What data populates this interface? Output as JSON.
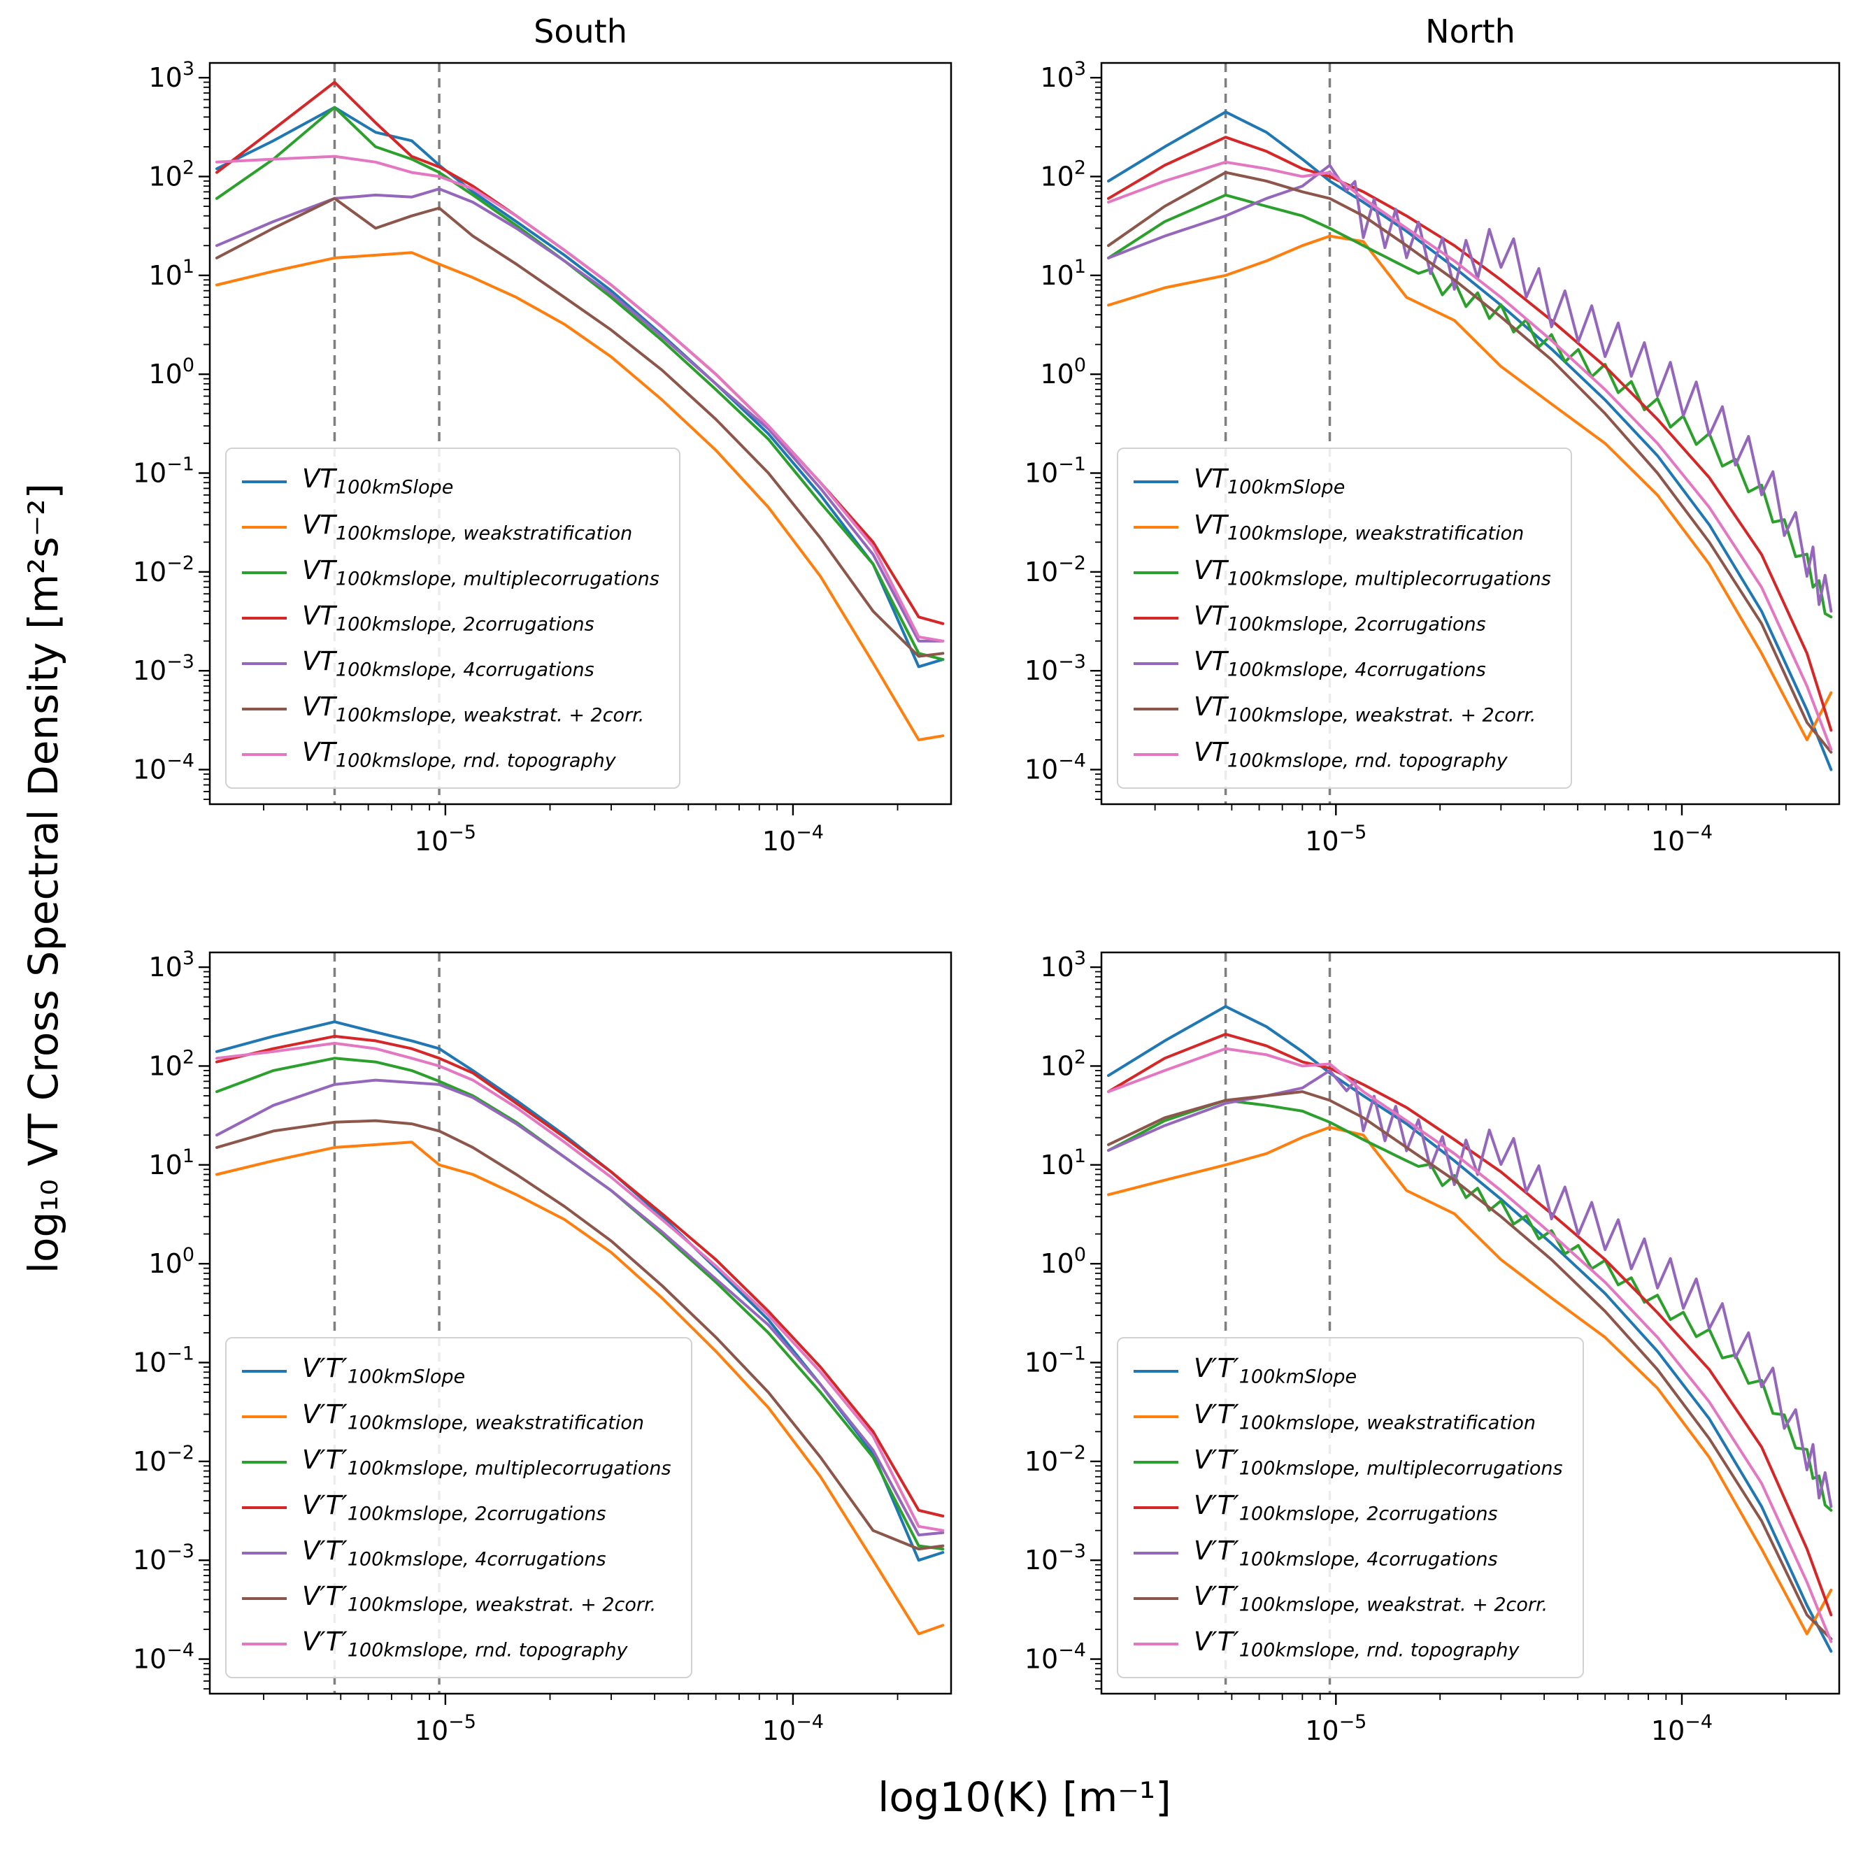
{
  "figure": {
    "column_titles": [
      "South",
      "North"
    ],
    "xlabel": "log10(K) [m⁻¹]",
    "ylabel": "log₁₀ VT Cross Spectral Density [m²s⁻²]"
  },
  "chart_data": {
    "type": "line",
    "x_scale": "log",
    "y_scale": "log",
    "xlim": [
      2.1e-06,
      0.000285
    ],
    "ylim": [
      4.47e-05,
      1410.0
    ],
    "xticks_labeled": [
      1e-05,
      0.0001
    ],
    "xtick_labels": [
      "10⁻⁵",
      "10⁻⁴"
    ],
    "ytick_exponents": [
      3,
      2,
      1,
      0,
      -1,
      -2,
      -3,
      -4
    ],
    "ytick_labels": [
      "10³",
      "10²",
      "10¹",
      "10⁰",
      "10⁻¹",
      "10⁻²",
      "10⁻³",
      "10⁻⁴"
    ],
    "vlines": [
      4.8e-06,
      9.6e-06
    ],
    "grid": false,
    "legend_position": "lower left",
    "x": [
      2.2e-06,
      3.2e-06,
      4.8e-06,
      6.3e-06,
      8e-06,
      9.6e-06,
      1.2e-05,
      1.6e-05,
      2.2e-05,
      3e-05,
      4.2e-05,
      6e-05,
      8.5e-05,
      0.00012,
      0.00017,
      0.00023,
      0.00027
    ],
    "panels": [
      {
        "id": "south-vt",
        "title": "South",
        "label_main": "VT",
        "series": [
          {
            "sub": "100kmSlope",
            "color": "#1f77b4",
            "y": [
              120,
              230,
              500,
              280,
              230,
              130,
              70,
              35,
              16,
              7,
              2.5,
              0.8,
              0.25,
              0.06,
              0.012,
              0.0011,
              0.0013
            ]
          },
          {
            "sub": "100kmslope, weakstratification",
            "color": "#ff7f0e",
            "y": [
              8,
              11,
              15,
              16,
              17,
              13,
              9.5,
              6,
              3.2,
              1.5,
              0.55,
              0.17,
              0.045,
              0.009,
              0.0012,
              0.0002,
              0.00022
            ]
          },
          {
            "sub": "100kmslope, multiplecorrugations",
            "color": "#2ca02c",
            "y": [
              60,
              150,
              500,
              200,
              150,
              110,
              65,
              32,
              14,
              6,
              2.2,
              0.7,
              0.22,
              0.05,
              0.012,
              0.0015,
              0.0013
            ]
          },
          {
            "sub": "100kmslope, 2corrugations",
            "color": "#d62728",
            "y": [
              110,
              300,
              900,
              350,
              160,
              125,
              80,
              40,
              18,
              8,
              3,
              1.0,
              0.3,
              0.08,
              0.02,
              0.0035,
              0.003
            ]
          },
          {
            "sub": "100kmslope, 4corrugations",
            "color": "#9467bd",
            "y": [
              20,
              35,
              60,
              65,
              62,
              75,
              55,
              30,
              14,
              6.5,
              2.4,
              0.8,
              0.28,
              0.07,
              0.015,
              0.002,
              0.002
            ]
          },
          {
            "sub": "100kmslope, weakstrat. + 2corr.",
            "color": "#8c564b",
            "y": [
              15,
              30,
              60,
              30,
              40,
              48,
              25,
              13,
              6,
              2.8,
              1.1,
              0.35,
              0.1,
              0.022,
              0.004,
              0.0014,
              0.0015
            ]
          },
          {
            "sub": "100kmslope, rnd. topography",
            "color": "#e377c2",
            "y": [
              140,
              150,
              160,
              140,
              110,
              100,
              75,
              40,
              18,
              8,
              3,
              1.0,
              0.3,
              0.08,
              0.018,
              0.0022,
              0.002
            ]
          }
        ]
      },
      {
        "id": "north-vt",
        "title": "North",
        "label_main": "VT",
        "series": [
          {
            "sub": "100kmSlope",
            "color": "#1f77b4",
            "y": [
              90,
              200,
              450,
              280,
              150,
              90,
              55,
              28,
              12,
              5,
              1.8,
              0.55,
              0.15,
              0.03,
              0.004,
              0.0004,
              0.0001
            ]
          },
          {
            "sub": "100kmslope, weakstratification",
            "color": "#ff7f0e",
            "y": [
              5,
              7.5,
              10,
              14,
              20,
              25,
              22,
              6,
              3.5,
              1.2,
              0.5,
              0.2,
              0.06,
              0.012,
              0.0015,
              0.0002,
              0.0006
            ]
          },
          {
            "sub": "100kmslope, multiplecorrugations",
            "color": "#2ca02c",
            "y": [
              15,
              35,
              65,
              50,
              40,
              30,
              20,
              12,
              7,
              4,
              2,
              1.0,
              0.45,
              0.2,
              0.06,
              0.012,
              0.0035
            ],
            "spike_amp": 0.1,
            "spike_from": 1.8e-05
          },
          {
            "sub": "100kmslope, 2corrugations",
            "color": "#d62728",
            "y": [
              60,
              130,
              250,
              180,
              120,
              100,
              70,
              40,
              20,
              9,
              3.5,
              1.2,
              0.35,
              0.09,
              0.015,
              0.0015,
              0.00025
            ]
          },
          {
            "sub": "100kmslope, 4corrugations",
            "color": "#9467bd",
            "y": [
              15,
              25,
              40,
              60,
              80,
              130,
              40,
              25,
              12,
              20,
              5,
              2.5,
              1.0,
              0.4,
              0.1,
              0.015,
              0.004
            ],
            "spike_amp": 0.22,
            "spike_from": 1.1e-05
          },
          {
            "sub": "100kmslope, weakstrat. + 2corr.",
            "color": "#8c564b",
            "y": [
              20,
              50,
              110,
              90,
              70,
              60,
              40,
              20,
              9,
              3.8,
              1.4,
              0.4,
              0.1,
              0.02,
              0.003,
              0.0003,
              0.00015
            ]
          },
          {
            "sub": "100kmslope, rnd. topography",
            "color": "#e377c2",
            "y": [
              55,
              90,
              140,
              120,
              100,
              110,
              60,
              30,
              14,
              6,
              2.2,
              0.7,
              0.2,
              0.045,
              0.007,
              0.0007,
              0.00016
            ]
          }
        ]
      },
      {
        "id": "south-vpt",
        "title": "",
        "label_main": "V′T′",
        "series": [
          {
            "sub": "100kmSlope",
            "color": "#1f77b4",
            "y": [
              140,
              200,
              280,
              220,
              180,
              150,
              90,
              45,
              20,
              8.5,
              3,
              0.9,
              0.27,
              0.06,
              0.012,
              0.001,
              0.0012
            ]
          },
          {
            "sub": "100kmslope, weakstratification",
            "color": "#ff7f0e",
            "y": [
              8,
              11,
              15,
              16,
              17,
              10,
              8,
              5,
              2.8,
              1.3,
              0.45,
              0.13,
              0.035,
              0.007,
              0.001,
              0.00018,
              0.00022
            ]
          },
          {
            "sub": "100kmslope, multiplecorrugations",
            "color": "#2ca02c",
            "y": [
              55,
              90,
              120,
              110,
              90,
              70,
              50,
              27,
              12,
              5.5,
              2.0,
              0.65,
              0.2,
              0.05,
              0.011,
              0.0014,
              0.0013
            ]
          },
          {
            "sub": "100kmslope, 2corrugations",
            "color": "#d62728",
            "y": [
              110,
              150,
              200,
              180,
              150,
              120,
              85,
              42,
              19,
              8.5,
              3.2,
              1.1,
              0.33,
              0.09,
              0.02,
              0.0032,
              0.0028
            ]
          },
          {
            "sub": "100kmslope, 4corrugations",
            "color": "#9467bd",
            "y": [
              20,
              40,
              65,
              72,
              68,
              65,
              48,
              26,
              12,
              5.5,
              2.1,
              0.7,
              0.24,
              0.06,
              0.013,
              0.0018,
              0.0019
            ]
          },
          {
            "sub": "100kmslope, weakstrat. + 2corr.",
            "color": "#8c564b",
            "y": [
              15,
              22,
              27,
              28,
              26,
              22,
              15,
              8,
              3.8,
              1.7,
              0.6,
              0.18,
              0.05,
              0.011,
              0.002,
              0.0013,
              0.0014
            ]
          },
          {
            "sub": "100kmslope, rnd. topography",
            "color": "#e377c2",
            "y": [
              120,
              140,
              170,
              150,
              120,
              100,
              72,
              38,
              17,
              7.5,
              2.8,
              0.95,
              0.3,
              0.08,
              0.018,
              0.0022,
              0.002
            ]
          }
        ]
      },
      {
        "id": "north-vpt",
        "title": "",
        "label_main": "V′T′",
        "series": [
          {
            "sub": "100kmSlope",
            "color": "#1f77b4",
            "y": [
              80,
              180,
              400,
              250,
              140,
              85,
              50,
              26,
              11,
              4.5,
              1.6,
              0.5,
              0.13,
              0.027,
              0.0035,
              0.00035,
              0.00012
            ]
          },
          {
            "sub": "100kmslope, weakstratification",
            "color": "#ff7f0e",
            "y": [
              5,
              7,
              10,
              13,
              19,
              24,
              20,
              5.5,
              3.2,
              1.1,
              0.45,
              0.18,
              0.055,
              0.011,
              0.0013,
              0.00018,
              0.0005
            ]
          },
          {
            "sub": "100kmslope, multiplecorrugations",
            "color": "#2ca02c",
            "y": [
              14,
              28,
              45,
              40,
              35,
              27,
              18,
              11,
              6.5,
              3.6,
              1.8,
              0.9,
              0.4,
              0.18,
              0.055,
              0.011,
              0.0032
            ],
            "spike_amp": 0.08,
            "spike_from": 1.8e-05
          },
          {
            "sub": "100kmslope, 2corrugations",
            "color": "#d62728",
            "y": [
              55,
              120,
              210,
              160,
              110,
              95,
              65,
              38,
              18,
              8.5,
              3.2,
              1.1,
              0.32,
              0.085,
              0.014,
              0.0013,
              0.00028
            ]
          },
          {
            "sub": "100kmslope, 4corrugations",
            "color": "#9467bd",
            "y": [
              14,
              25,
              42,
              50,
              60,
              90,
              35,
              22,
              10,
              16,
              4.5,
              2.2,
              0.9,
              0.35,
              0.09,
              0.013,
              0.0035
            ],
            "spike_amp": 0.2,
            "spike_from": 1.1e-05
          },
          {
            "sub": "100kmslope, weakstrat. + 2corr.",
            "color": "#8c564b",
            "y": [
              16,
              30,
              45,
              50,
              55,
              45,
              30,
              15,
              7,
              3,
              1.1,
              0.33,
              0.085,
              0.017,
              0.0025,
              0.00028,
              0.00016
            ]
          },
          {
            "sub": "100kmslope, rnd. topography",
            "color": "#e377c2",
            "y": [
              55,
              90,
              150,
              130,
              100,
              105,
              55,
              28,
              13,
              5.5,
              2.0,
              0.65,
              0.18,
              0.04,
              0.006,
              0.0006,
              0.00015
            ]
          }
        ]
      }
    ]
  }
}
